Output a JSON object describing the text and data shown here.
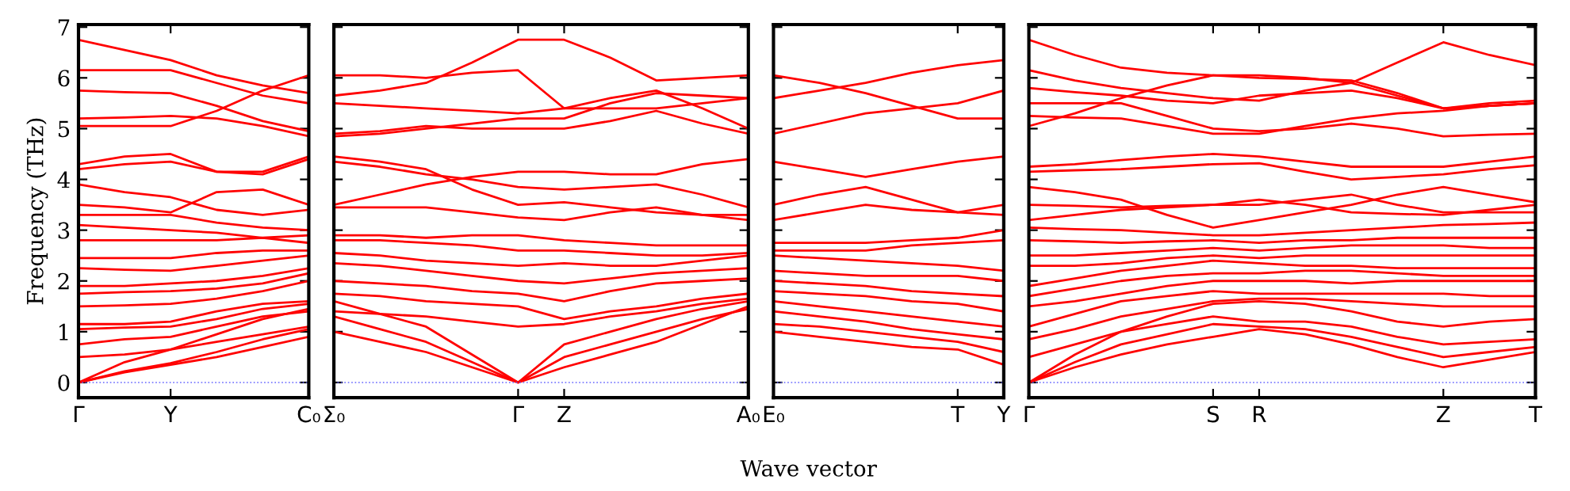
{
  "chart_data": [
    {
      "type": "line",
      "ylabel": "Frequency (THz)",
      "categories": [
        "Γ",
        null,
        "Y",
        null,
        null,
        "C₀"
      ],
      "ylim": [
        -0.3,
        7.05
      ],
      "yticks": [
        0,
        1,
        2,
        3,
        4,
        5,
        6,
        7
      ],
      "line_style": "solid",
      "ref_lines": [
        {
          "axis": "y",
          "value": 0,
          "color": "#6666ff",
          "line_style": "dotted"
        }
      ],
      "series": [
        {
          "color": "#ff0000",
          "values": [
            0,
            0.2,
            0.35,
            0.5,
            0.7,
            0.9
          ]
        },
        {
          "color": "#ff0000",
          "values": [
            0,
            0.22,
            0.38,
            0.6,
            0.85,
            1.05
          ]
        },
        {
          "color": "#ff0000",
          "values": [
            0,
            0.4,
            0.65,
            0.95,
            1.25,
            1.45
          ]
        },
        {
          "color": "#ff0000",
          "values": [
            0.5,
            0.55,
            0.65,
            0.8,
            0.95,
            1.1
          ]
        },
        {
          "color": "#ff0000",
          "values": [
            0.75,
            0.85,
            0.9,
            1.1,
            1.3,
            1.4
          ]
        },
        {
          "color": "#ff0000",
          "values": [
            1.05,
            1.08,
            1.1,
            1.25,
            1.45,
            1.55
          ]
        },
        {
          "color": "#ff0000",
          "values": [
            1.15,
            1.15,
            1.2,
            1.4,
            1.55,
            1.6
          ]
        },
        {
          "color": "#ff0000",
          "values": [
            1.5,
            1.52,
            1.55,
            1.65,
            1.8,
            2.0
          ]
        },
        {
          "color": "#ff0000",
          "values": [
            1.75,
            1.78,
            1.8,
            1.85,
            1.95,
            2.15
          ]
        },
        {
          "color": "#ff0000",
          "values": [
            1.9,
            1.9,
            1.95,
            2.0,
            2.1,
            2.25
          ]
        },
        {
          "color": "#ff0000",
          "values": [
            2.25,
            2.22,
            2.2,
            2.3,
            2.4,
            2.5
          ]
        },
        {
          "color": "#ff0000",
          "values": [
            2.45,
            2.45,
            2.45,
            2.55,
            2.6,
            2.6
          ]
        },
        {
          "color": "#ff0000",
          "values": [
            2.8,
            2.8,
            2.8,
            2.8,
            2.85,
            2.9
          ]
        },
        {
          "color": "#ff0000",
          "values": [
            3.1,
            3.05,
            3.0,
            2.95,
            2.85,
            2.75
          ]
        },
        {
          "color": "#ff0000",
          "values": [
            3.3,
            3.3,
            3.3,
            3.15,
            3.05,
            3.0
          ]
        },
        {
          "color": "#ff0000",
          "values": [
            3.5,
            3.45,
            3.35,
            3.75,
            3.8,
            3.5
          ]
        },
        {
          "color": "#ff0000",
          "values": [
            3.9,
            3.75,
            3.65,
            3.4,
            3.3,
            3.4
          ]
        },
        {
          "color": "#ff0000",
          "values": [
            4.2,
            4.3,
            4.35,
            4.15,
            4.1,
            4.4
          ]
        },
        {
          "color": "#ff0000",
          "values": [
            4.3,
            4.45,
            4.5,
            4.15,
            4.15,
            4.45
          ]
        },
        {
          "color": "#ff0000",
          "values": [
            5.05,
            5.05,
            5.05,
            5.35,
            5.75,
            6.05
          ]
        },
        {
          "color": "#ff0000",
          "values": [
            5.2,
            5.22,
            5.25,
            5.2,
            5.05,
            4.85
          ]
        },
        {
          "color": "#ff0000",
          "values": [
            5.75,
            5.72,
            5.7,
            5.45,
            5.15,
            4.95
          ]
        },
        {
          "color": "#ff0000",
          "values": [
            6.15,
            6.15,
            6.15,
            5.9,
            5.65,
            5.5
          ]
        },
        {
          "color": "#ff0000",
          "values": [
            6.75,
            6.55,
            6.35,
            6.05,
            5.85,
            5.7
          ]
        }
      ]
    },
    {
      "type": "line",
      "xlabel": "Wave vector",
      "categories": [
        "Σ₀",
        null,
        null,
        null,
        "Γ",
        "Z",
        null,
        null,
        null,
        "A₀"
      ],
      "ylim": [
        -0.3,
        7.05
      ],
      "yticks": [
        0,
        1,
        2,
        3,
        4,
        5,
        6,
        7
      ],
      "tick_labels": "x",
      "line_style": "solid",
      "ref_lines": [
        {
          "axis": "y",
          "value": 0,
          "color": "#6666ff",
          "line_style": "dotted"
        }
      ],
      "series": [
        {
          "color": "#ff0000",
          "values": [
            1.3,
            1.05,
            0.8,
            0.4,
            0,
            0.3,
            0.55,
            0.8,
            1.15,
            1.5
          ]
        },
        {
          "color": "#ff0000",
          "values": [
            1.0,
            0.8,
            0.6,
            0.3,
            0,
            0.5,
            0.75,
            1.0,
            1.25,
            1.45
          ]
        },
        {
          "color": "#ff0000",
          "values": [
            1.6,
            1.35,
            1.1,
            0.55,
            0,
            0.75,
            1.0,
            1.25,
            1.45,
            1.6
          ]
        },
        {
          "color": "#ff0000",
          "values": [
            1.4,
            1.35,
            1.3,
            1.2,
            1.1,
            1.15,
            1.3,
            1.4,
            1.55,
            1.65
          ]
        },
        {
          "color": "#ff0000",
          "values": [
            1.75,
            1.7,
            1.6,
            1.55,
            1.5,
            1.25,
            1.4,
            1.5,
            1.65,
            1.75
          ]
        },
        {
          "color": "#ff0000",
          "values": [
            2.0,
            1.95,
            1.9,
            1.8,
            1.75,
            1.6,
            1.8,
            1.95,
            2.0,
            2.05
          ]
        },
        {
          "color": "#ff0000",
          "values": [
            2.35,
            2.3,
            2.2,
            2.1,
            2.0,
            1.95,
            2.05,
            2.15,
            2.2,
            2.25
          ]
        },
        {
          "color": "#ff0000",
          "values": [
            2.55,
            2.5,
            2.4,
            2.35,
            2.3,
            2.35,
            2.3,
            2.3,
            2.4,
            2.5
          ]
        },
        {
          "color": "#ff0000",
          "values": [
            2.8,
            2.8,
            2.75,
            2.7,
            2.6,
            2.6,
            2.55,
            2.5,
            2.5,
            2.55
          ]
        },
        {
          "color": "#ff0000",
          "values": [
            2.9,
            2.9,
            2.85,
            2.9,
            2.9,
            2.8,
            2.75,
            2.7,
            2.7,
            2.7
          ]
        },
        {
          "color": "#ff0000",
          "values": [
            3.45,
            3.45,
            3.45,
            3.35,
            3.25,
            3.2,
            3.35,
            3.45,
            3.3,
            3.2
          ]
        },
        {
          "color": "#ff0000",
          "values": [
            3.5,
            3.7,
            3.9,
            4.05,
            4.15,
            4.15,
            4.1,
            4.1,
            4.3,
            4.4
          ]
        },
        {
          "color": "#ff0000",
          "values": [
            4.35,
            4.25,
            4.1,
            4.0,
            3.85,
            3.8,
            3.85,
            3.9,
            3.7,
            3.45
          ]
        },
        {
          "color": "#ff0000",
          "values": [
            4.45,
            4.35,
            4.2,
            3.8,
            3.5,
            3.55,
            3.45,
            3.35,
            3.3,
            3.3
          ]
        },
        {
          "color": "#ff0000",
          "values": [
            4.85,
            4.9,
            5.0,
            5.1,
            5.2,
            5.2,
            5.5,
            5.7,
            5.65,
            5.6
          ]
        },
        {
          "color": "#ff0000",
          "values": [
            4.9,
            4.95,
            5.05,
            5.0,
            5.0,
            5.0,
            5.15,
            5.35,
            5.1,
            4.9
          ]
        },
        {
          "color": "#ff0000",
          "values": [
            5.5,
            5.45,
            5.4,
            5.35,
            5.3,
            5.4,
            5.6,
            5.75,
            5.4,
            5.0
          ]
        },
        {
          "color": "#ff0000",
          "values": [
            5.65,
            5.75,
            5.9,
            6.3,
            6.75,
            6.75,
            6.4,
            5.95,
            6.0,
            6.05
          ]
        },
        {
          "color": "#ff0000",
          "values": [
            6.05,
            6.05,
            6.0,
            6.1,
            6.15,
            5.4,
            5.4,
            5.4,
            5.5,
            5.6
          ]
        }
      ]
    },
    {
      "type": "line",
      "categories": [
        "E₀",
        null,
        null,
        null,
        "T",
        "Y"
      ],
      "ylim": [
        -0.3,
        7.05
      ],
      "yticks": [
        0,
        1,
        2,
        3,
        4,
        5,
        6,
        7
      ],
      "tick_labels": "x",
      "line_style": "solid",
      "ref_lines": [
        {
          "axis": "y",
          "value": 0,
          "color": "#6666ff",
          "line_style": "dotted"
        }
      ],
      "series": [
        {
          "color": "#ff0000",
          "values": [
            1.0,
            0.9,
            0.8,
            0.7,
            0.65,
            0.35
          ]
        },
        {
          "color": "#ff0000",
          "values": [
            1.15,
            1.1,
            1.0,
            0.9,
            0.8,
            0.6
          ]
        },
        {
          "color": "#ff0000",
          "values": [
            1.4,
            1.3,
            1.2,
            1.05,
            0.95,
            0.85
          ]
        },
        {
          "color": "#ff0000",
          "values": [
            1.6,
            1.5,
            1.4,
            1.3,
            1.2,
            1.1
          ]
        },
        {
          "color": "#ff0000",
          "values": [
            1.8,
            1.75,
            1.7,
            1.6,
            1.55,
            1.4
          ]
        },
        {
          "color": "#ff0000",
          "values": [
            2.0,
            1.95,
            1.9,
            1.8,
            1.75,
            1.7
          ]
        },
        {
          "color": "#ff0000",
          "values": [
            2.2,
            2.15,
            2.1,
            2.1,
            2.1,
            2.0
          ]
        },
        {
          "color": "#ff0000",
          "values": [
            2.5,
            2.45,
            2.4,
            2.35,
            2.3,
            2.2
          ]
        },
        {
          "color": "#ff0000",
          "values": [
            2.6,
            2.6,
            2.6,
            2.7,
            2.75,
            2.8
          ]
        },
        {
          "color": "#ff0000",
          "values": [
            2.75,
            2.75,
            2.75,
            2.8,
            2.85,
            3.0
          ]
        },
        {
          "color": "#ff0000",
          "values": [
            3.2,
            3.35,
            3.5,
            3.4,
            3.35,
            3.3
          ]
        },
        {
          "color": "#ff0000",
          "values": [
            3.5,
            3.7,
            3.85,
            3.6,
            3.35,
            3.5
          ]
        },
        {
          "color": "#ff0000",
          "values": [
            4.35,
            4.2,
            4.05,
            4.2,
            4.35,
            4.45
          ]
        },
        {
          "color": "#ff0000",
          "values": [
            4.9,
            5.1,
            5.3,
            5.4,
            5.5,
            5.75
          ]
        },
        {
          "color": "#ff0000",
          "values": [
            5.6,
            5.75,
            5.9,
            6.1,
            6.25,
            6.35
          ]
        },
        {
          "color": "#ff0000",
          "values": [
            6.05,
            5.9,
            5.7,
            5.45,
            5.2,
            5.2
          ]
        }
      ]
    },
    {
      "type": "line",
      "categories": [
        "Γ",
        null,
        null,
        null,
        "S",
        "R",
        null,
        null,
        null,
        "Z",
        null,
        "T"
      ],
      "ylim": [
        -0.3,
        7.05
      ],
      "yticks": [
        0,
        1,
        2,
        3,
        4,
        5,
        6,
        7
      ],
      "tick_labels": "x",
      "line_style": "solid",
      "ref_lines": [
        {
          "axis": "y",
          "value": 0,
          "color": "#6666ff",
          "line_style": "dotted"
        }
      ],
      "series": [
        {
          "color": "#ff0000",
          "values": [
            0,
            0.3,
            0.55,
            0.75,
            0.9,
            1.05,
            0.95,
            0.75,
            0.5,
            0.3,
            0.45,
            0.6
          ]
        },
        {
          "color": "#ff0000",
          "values": [
            0,
            0.4,
            0.75,
            0.95,
            1.15,
            1.1,
            1.05,
            0.9,
            0.7,
            0.5,
            0.6,
            0.7
          ]
        },
        {
          "color": "#ff0000",
          "values": [
            0,
            0.55,
            1.0,
            1.15,
            1.3,
            1.2,
            1.2,
            1.1,
            0.9,
            0.75,
            0.8,
            0.85
          ]
        },
        {
          "color": "#ff0000",
          "values": [
            0.5,
            0.75,
            1.0,
            1.3,
            1.55,
            1.6,
            1.55,
            1.4,
            1.2,
            1.1,
            1.2,
            1.25
          ]
        },
        {
          "color": "#ff0000",
          "values": [
            0.85,
            1.05,
            1.3,
            1.45,
            1.6,
            1.65,
            1.65,
            1.6,
            1.55,
            1.5,
            1.5,
            1.5
          ]
        },
        {
          "color": "#ff0000",
          "values": [
            1.1,
            1.35,
            1.6,
            1.7,
            1.8,
            1.75,
            1.75,
            1.75,
            1.75,
            1.75,
            1.7,
            1.7
          ]
        },
        {
          "color": "#ff0000",
          "values": [
            1.5,
            1.6,
            1.75,
            1.9,
            2.0,
            2.0,
            2.0,
            1.95,
            2.0,
            2.0,
            2.0,
            2.0
          ]
        },
        {
          "color": "#ff0000",
          "values": [
            1.7,
            1.85,
            2.0,
            2.1,
            2.15,
            2.15,
            2.2,
            2.2,
            2.15,
            2.1,
            2.1,
            2.1
          ]
        },
        {
          "color": "#ff0000",
          "values": [
            1.9,
            2.05,
            2.2,
            2.3,
            2.4,
            2.35,
            2.3,
            2.3,
            2.25,
            2.25,
            2.25,
            2.25
          ]
        },
        {
          "color": "#ff0000",
          "values": [
            2.3,
            2.3,
            2.35,
            2.45,
            2.5,
            2.45,
            2.5,
            2.5,
            2.5,
            2.5,
            2.5,
            2.5
          ]
        },
        {
          "color": "#ff0000",
          "values": [
            2.5,
            2.5,
            2.55,
            2.6,
            2.65,
            2.6,
            2.65,
            2.7,
            2.7,
            2.7,
            2.65,
            2.65
          ]
        },
        {
          "color": "#ff0000",
          "values": [
            2.8,
            2.78,
            2.75,
            2.78,
            2.8,
            2.75,
            2.8,
            2.8,
            2.85,
            2.85,
            2.85,
            2.85
          ]
        },
        {
          "color": "#ff0000",
          "values": [
            3.05,
            3.02,
            3.0,
            2.95,
            2.9,
            2.9,
            2.95,
            3.0,
            3.05,
            3.1,
            3.12,
            3.15
          ]
        },
        {
          "color": "#ff0000",
          "values": [
            3.2,
            3.3,
            3.4,
            3.45,
            3.5,
            3.5,
            3.6,
            3.7,
            3.5,
            3.35,
            3.35,
            3.35
          ]
        },
        {
          "color": "#ff0000",
          "values": [
            3.5,
            3.48,
            3.45,
            3.48,
            3.5,
            3.6,
            3.5,
            3.35,
            3.32,
            3.3,
            3.4,
            3.5
          ]
        },
        {
          "color": "#ff0000",
          "values": [
            3.85,
            3.75,
            3.6,
            3.3,
            3.05,
            3.2,
            3.35,
            3.5,
            3.7,
            3.85,
            3.7,
            3.55
          ]
        },
        {
          "color": "#ff0000",
          "values": [
            4.25,
            4.3,
            4.38,
            4.45,
            4.5,
            4.45,
            4.35,
            4.25,
            4.25,
            4.25,
            4.35,
            4.45
          ]
        },
        {
          "color": "#ff0000",
          "values": [
            4.15,
            4.18,
            4.2,
            4.25,
            4.3,
            4.32,
            4.15,
            4.0,
            4.05,
            4.1,
            4.2,
            4.28
          ]
        },
        {
          "color": "#ff0000",
          "values": [
            5.05,
            5.3,
            5.6,
            5.85,
            6.05,
            6.05,
            6.0,
            5.9,
            6.3,
            6.7,
            6.45,
            6.25
          ]
        },
        {
          "color": "#ff0000",
          "values": [
            5.25,
            5.22,
            5.2,
            5.05,
            4.9,
            4.9,
            5.05,
            5.2,
            5.3,
            5.35,
            5.45,
            5.5
          ]
        },
        {
          "color": "#ff0000",
          "values": [
            5.5,
            5.5,
            5.5,
            5.25,
            5.0,
            4.95,
            5.0,
            5.1,
            5.0,
            4.85,
            4.88,
            4.9
          ]
        },
        {
          "color": "#ff0000",
          "values": [
            5.8,
            5.72,
            5.65,
            5.55,
            5.5,
            5.65,
            5.7,
            5.75,
            5.6,
            5.4,
            5.45,
            5.5
          ]
        },
        {
          "color": "#ff0000",
          "values": [
            6.15,
            5.95,
            5.8,
            5.7,
            5.6,
            5.55,
            5.75,
            5.9,
            5.65,
            5.4,
            5.45,
            5.5
          ]
        },
        {
          "color": "#ff0000",
          "values": [
            6.75,
            6.45,
            6.2,
            6.1,
            6.05,
            6.0,
            5.98,
            5.95,
            5.7,
            5.4,
            5.5,
            5.55
          ]
        }
      ]
    }
  ]
}
